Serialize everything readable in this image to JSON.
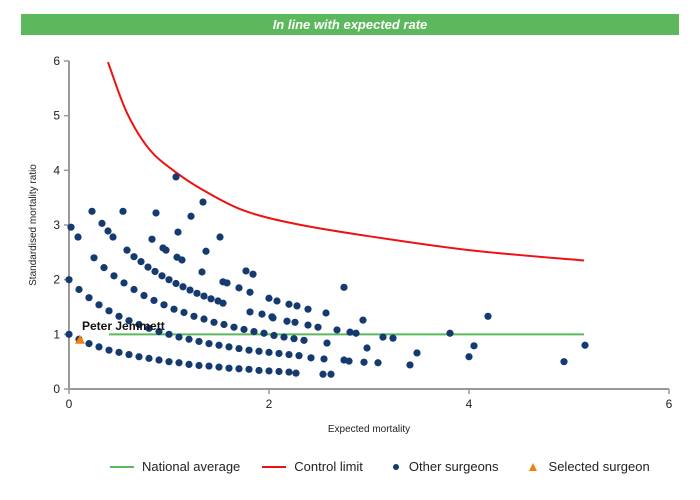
{
  "chart_data": {
    "type": "scatter",
    "title": "In line with expected rate",
    "xlabel": "Expected mortality",
    "ylabel": "Standardised mortality ratio",
    "xlim": [
      0,
      6
    ],
    "ylim": [
      0,
      6
    ],
    "xticks": [
      "0",
      "2",
      "4",
      "6"
    ],
    "yticks": [
      "0",
      "1",
      "2",
      "3",
      "4",
      "5",
      "6"
    ],
    "grid": false,
    "legend_placement": "bottom",
    "colors": {
      "national_average": "#5cb85c",
      "control_limit": "#ee1111",
      "other_surgeons": "#153a70",
      "selected_surgeon": "#f28010",
      "banner": "#5cb85c"
    },
    "series": [
      {
        "name": "National average",
        "kind": "line",
        "points": [
          [
            0.4,
            1
          ],
          [
            5.15,
            1
          ]
        ]
      },
      {
        "name": "Control limit",
        "kind": "line",
        "points": [
          [
            0.39,
            5.98
          ],
          [
            0.58,
            5.05
          ],
          [
            0.81,
            4.37
          ],
          [
            1.08,
            3.95
          ],
          [
            1.34,
            3.64
          ],
          [
            1.74,
            3.27
          ],
          [
            2.24,
            3.03
          ],
          [
            2.91,
            2.82
          ],
          [
            4.0,
            2.54
          ],
          [
            5.15,
            2.35
          ]
        ]
      },
      {
        "name": "Other surgeons",
        "kind": "scatter",
        "points": [
          [
            0,
            1.0
          ],
          [
            0.1,
            0.91
          ],
          [
            0.2,
            0.83
          ],
          [
            0.3,
            0.77
          ],
          [
            0.4,
            0.71
          ],
          [
            0.5,
            0.67
          ],
          [
            0.6,
            0.63
          ],
          [
            0.7,
            0.59
          ],
          [
            0.8,
            0.56
          ],
          [
            0.9,
            0.53
          ],
          [
            1.0,
            0.5
          ],
          [
            1.1,
            0.48
          ],
          [
            1.2,
            0.45
          ],
          [
            1.3,
            0.43
          ],
          [
            1.4,
            0.42
          ],
          [
            1.5,
            0.4
          ],
          [
            1.6,
            0.38
          ],
          [
            1.7,
            0.37
          ],
          [
            1.8,
            0.36
          ],
          [
            1.9,
            0.34
          ],
          [
            2.0,
            0.33
          ],
          [
            2.1,
            0.32
          ],
          [
            2.2,
            0.31
          ],
          [
            2.27,
            0.29
          ],
          [
            2.54,
            0.27
          ],
          [
            2.62,
            0.27
          ],
          [
            0,
            2.0
          ],
          [
            0.1,
            1.82
          ],
          [
            0.2,
            1.67
          ],
          [
            0.3,
            1.54
          ],
          [
            0.4,
            1.43
          ],
          [
            0.5,
            1.33
          ],
          [
            0.6,
            1.25
          ],
          [
            0.7,
            1.18
          ],
          [
            0.8,
            1.11
          ],
          [
            0.9,
            1.05
          ],
          [
            1.0,
            1.0
          ],
          [
            1.1,
            0.95
          ],
          [
            1.2,
            0.91
          ],
          [
            1.3,
            0.87
          ],
          [
            1.4,
            0.83
          ],
          [
            1.5,
            0.8
          ],
          [
            1.6,
            0.77
          ],
          [
            1.7,
            0.74
          ],
          [
            1.8,
            0.71
          ],
          [
            1.9,
            0.69
          ],
          [
            2.0,
            0.67
          ],
          [
            2.1,
            0.65
          ],
          [
            2.2,
            0.63
          ],
          [
            2.3,
            0.61
          ],
          [
            2.42,
            0.57
          ],
          [
            2.55,
            0.55
          ],
          [
            0.25,
            2.4
          ],
          [
            0.35,
            2.22
          ],
          [
            0.45,
            2.07
          ],
          [
            0.55,
            1.94
          ],
          [
            0.65,
            1.82
          ],
          [
            0.75,
            1.71
          ],
          [
            0.85,
            1.62
          ],
          [
            0.95,
            1.54
          ],
          [
            1.05,
            1.46
          ],
          [
            1.15,
            1.4
          ],
          [
            1.25,
            1.33
          ],
          [
            1.35,
            1.28
          ],
          [
            1.45,
            1.22
          ],
          [
            1.55,
            1.18
          ],
          [
            1.65,
            1.13
          ],
          [
            1.75,
            1.09
          ],
          [
            1.85,
            1.05
          ],
          [
            1.95,
            1.02
          ],
          [
            2.05,
            0.98
          ],
          [
            2.15,
            0.95
          ],
          [
            2.25,
            0.92
          ],
          [
            2.35,
            0.89
          ],
          [
            0.58,
            2.54
          ],
          [
            0.65,
            2.42
          ],
          [
            0.72,
            2.33
          ],
          [
            0.79,
            2.23
          ],
          [
            0.86,
            2.15
          ],
          [
            0.93,
            2.07
          ],
          [
            1.0,
            2.0
          ],
          [
            1.07,
            1.93
          ],
          [
            1.14,
            1.87
          ],
          [
            1.21,
            1.81
          ],
          [
            1.28,
            1.75
          ],
          [
            1.35,
            1.7
          ],
          [
            1.42,
            1.65
          ],
          [
            1.49,
            1.61
          ],
          [
            1.54,
            1.57
          ],
          [
            1.07,
            3.88
          ],
          [
            0.23,
            3.25
          ],
          [
            0.54,
            3.25
          ],
          [
            0.87,
            3.22
          ],
          [
            1.34,
            3.42
          ],
          [
            1.22,
            3.16
          ],
          [
            0.02,
            2.96
          ],
          [
            0.33,
            3.03
          ],
          [
            0.39,
            2.89
          ],
          [
            0.44,
            2.78
          ],
          [
            0.09,
            2.78
          ],
          [
            0.83,
            2.74
          ],
          [
            1.09,
            2.87
          ],
          [
            1.51,
            2.78
          ],
          [
            0.94,
            2.58
          ],
          [
            0.97,
            2.54
          ],
          [
            1.37,
            2.52
          ],
          [
            1.08,
            2.41
          ],
          [
            1.13,
            2.36
          ],
          [
            1.33,
            2.14
          ],
          [
            1.77,
            2.16
          ],
          [
            1.84,
            2.1
          ],
          [
            1.54,
            1.96
          ],
          [
            1.58,
            1.94
          ],
          [
            1.7,
            1.85
          ],
          [
            1.81,
            1.77
          ],
          [
            2.0,
            1.66
          ],
          [
            2.08,
            1.61
          ],
          [
            2.2,
            1.55
          ],
          [
            2.28,
            1.52
          ],
          [
            1.81,
            1.41
          ],
          [
            1.93,
            1.37
          ],
          [
            2.03,
            1.32
          ],
          [
            2.75,
            1.86
          ],
          [
            2.57,
            1.39
          ],
          [
            2.39,
            1.46
          ],
          [
            2.94,
            1.26
          ],
          [
            2.68,
            1.08
          ],
          [
            2.81,
            1.04
          ],
          [
            2.87,
            1.02
          ],
          [
            2.49,
            1.13
          ],
          [
            2.39,
            1.17
          ],
          [
            2.26,
            1.22
          ],
          [
            2.18,
            1.24
          ],
          [
            2.04,
            1.3
          ],
          [
            3.14,
            0.95
          ],
          [
            3.24,
            0.93
          ],
          [
            3.81,
            1.02
          ],
          [
            4.19,
            1.33
          ],
          [
            5.16,
            0.8
          ],
          [
            4.95,
            0.5
          ],
          [
            4.05,
            0.79
          ],
          [
            4.0,
            0.59
          ],
          [
            3.48,
            0.66
          ],
          [
            3.41,
            0.44
          ],
          [
            3.09,
            0.48
          ],
          [
            2.98,
            0.75
          ],
          [
            2.95,
            0.49
          ],
          [
            2.75,
            0.53
          ],
          [
            2.8,
            0.51
          ],
          [
            2.58,
            0.84
          ]
        ]
      },
      {
        "name": "Selected surgeon",
        "kind": "scatter",
        "points": [
          [
            0.11,
            0.9
          ]
        ]
      }
    ],
    "annotations": [
      {
        "text": "Peter Jemmett",
        "x": 0.11,
        "y": 0.9
      }
    ]
  },
  "legend": {
    "national_average": "National average",
    "control_limit": "Control limit",
    "other_surgeons": "Other surgeons",
    "selected_surgeon": "Selected surgeon"
  }
}
